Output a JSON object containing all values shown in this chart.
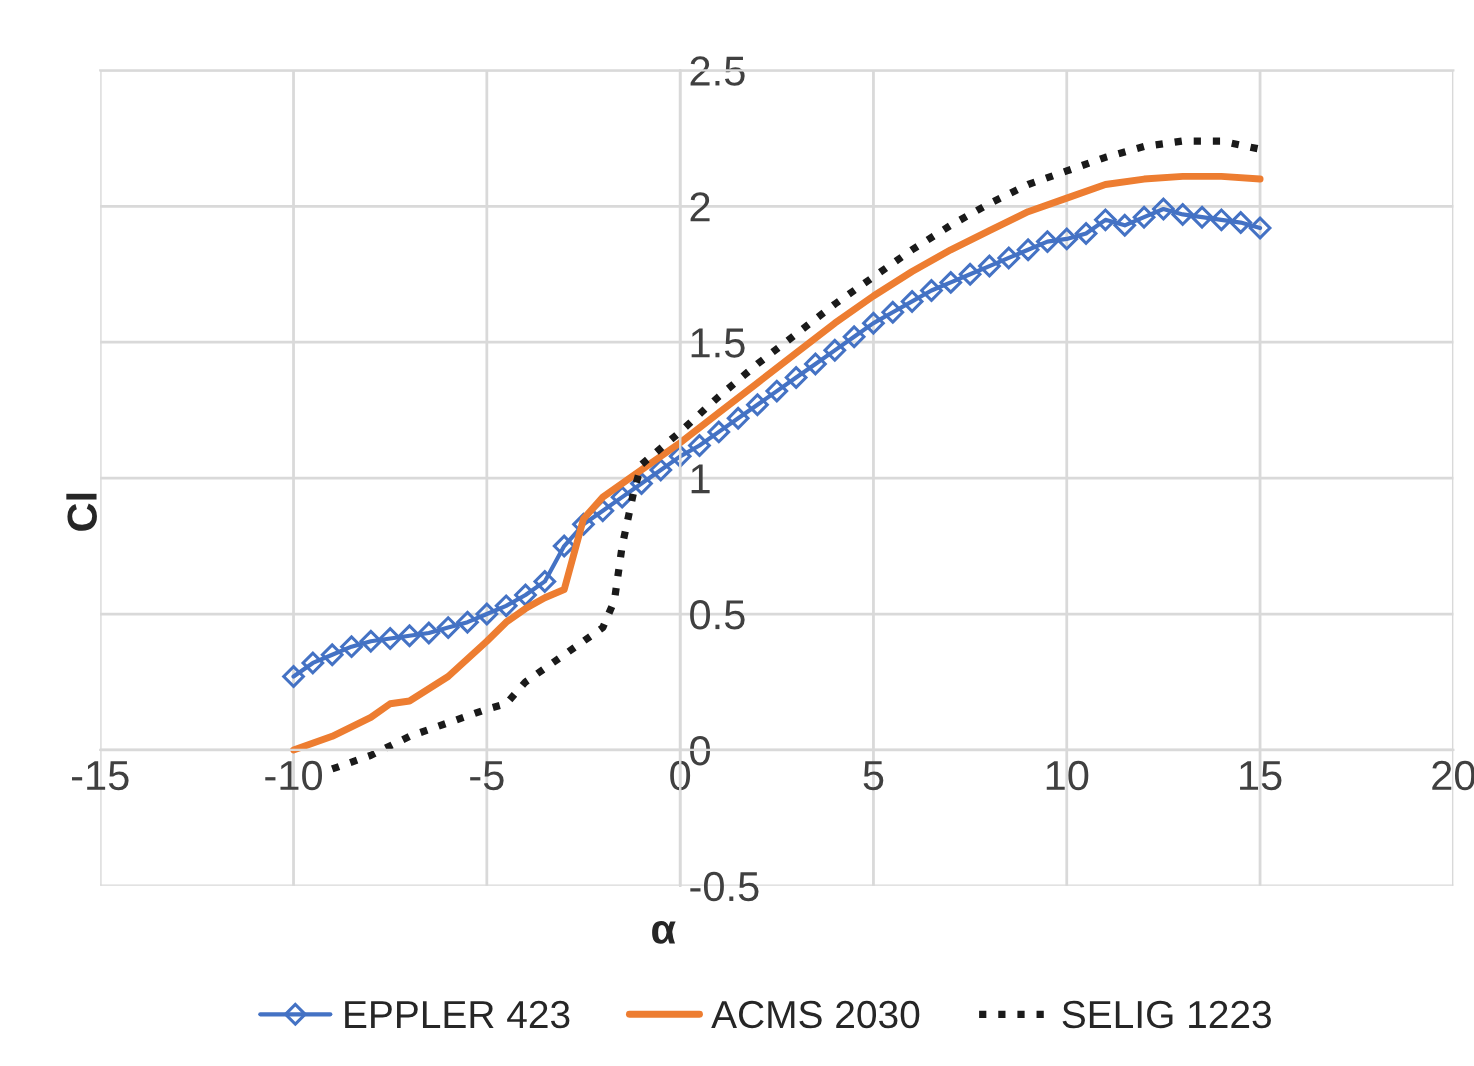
{
  "chart_data": {
    "type": "line",
    "xlabel": "α",
    "ylabel": "Cl",
    "xlim": [
      -15,
      20
    ],
    "ylim": [
      -0.5,
      2.5
    ],
    "xticks": [
      -15,
      -10,
      -5,
      0,
      5,
      10,
      15,
      20
    ],
    "yticks": [
      -0.5,
      0,
      0.5,
      1,
      1.5,
      2,
      2.5
    ],
    "grid": true,
    "legend": "bottom",
    "series": [
      {
        "name": "EPPLER 423",
        "color": "#4472c4",
        "marker": "diamond",
        "line_style": "solid",
        "x": [
          -10,
          -9.5,
          -9,
          -8.5,
          -8,
          -7.5,
          -7,
          -6.5,
          -6,
          -5.5,
          -5,
          -4.5,
          -4,
          -3.5,
          -3,
          -2.5,
          -2,
          -1.5,
          -1,
          -0.5,
          0,
          0.5,
          1,
          1.5,
          2,
          2.5,
          3,
          3.5,
          4,
          4.5,
          5,
          5.5,
          6,
          6.5,
          7,
          7.5,
          8,
          8.5,
          9,
          9.5,
          10,
          10.5,
          11,
          11.5,
          12,
          12.5,
          13,
          13.5,
          14,
          14.5,
          15
        ],
        "values": [
          0.27,
          0.32,
          0.35,
          0.38,
          0.4,
          0.41,
          0.42,
          0.43,
          0.45,
          0.47,
          0.5,
          0.53,
          0.57,
          0.62,
          0.75,
          0.83,
          0.88,
          0.93,
          0.98,
          1.03,
          1.08,
          1.12,
          1.17,
          1.22,
          1.27,
          1.32,
          1.37,
          1.42,
          1.47,
          1.52,
          1.57,
          1.61,
          1.65,
          1.69,
          1.72,
          1.75,
          1.78,
          1.81,
          1.84,
          1.87,
          1.88,
          1.9,
          1.95,
          1.93,
          1.96,
          1.99,
          1.97,
          1.96,
          1.95,
          1.94,
          1.92
        ]
      },
      {
        "name": "ACMS 2030",
        "color": "#ed7d31",
        "marker": "none",
        "line_style": "solid",
        "x": [
          -10,
          -9,
          -8,
          -7.5,
          -7,
          -6,
          -5,
          -4.5,
          -4,
          -3.5,
          -3,
          -2.5,
          -2,
          -1,
          0,
          1,
          2,
          3,
          4,
          5,
          6,
          7,
          8,
          9,
          10,
          11,
          12,
          13,
          14,
          15
        ],
        "values": [
          0.0,
          0.05,
          0.12,
          0.17,
          0.18,
          0.27,
          0.4,
          0.47,
          0.52,
          0.56,
          0.59,
          0.85,
          0.93,
          1.03,
          1.13,
          1.24,
          1.35,
          1.46,
          1.57,
          1.67,
          1.76,
          1.84,
          1.91,
          1.98,
          2.03,
          2.08,
          2.1,
          2.11,
          2.11,
          2.1
        ]
      },
      {
        "name": "SELIG 1223",
        "color": "#1a1a1a",
        "marker": "none",
        "line_style": "dotted",
        "x": [
          -9,
          -8,
          -7,
          -6,
          -5,
          -4.5,
          -4,
          -3,
          -2,
          -1.7,
          -1.5,
          -1.2,
          -1,
          0,
          1,
          2,
          3,
          4,
          5,
          6,
          7,
          8,
          9,
          10,
          11,
          12,
          13,
          14,
          15
        ],
        "values": [
          -0.07,
          -0.02,
          0.05,
          0.1,
          0.15,
          0.17,
          0.25,
          0.35,
          0.45,
          0.55,
          0.75,
          0.95,
          1.05,
          1.17,
          1.3,
          1.42,
          1.53,
          1.64,
          1.74,
          1.84,
          1.93,
          2.01,
          2.08,
          2.13,
          2.18,
          2.22,
          2.24,
          2.24,
          2.21
        ]
      }
    ]
  }
}
